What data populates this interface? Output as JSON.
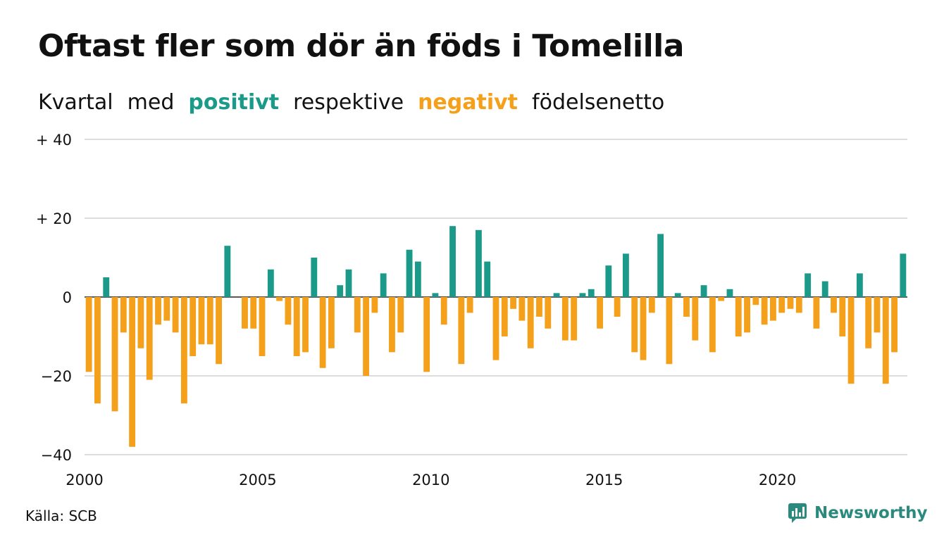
{
  "title": "Oftast fler som dör än föds i Tomelilla",
  "subtitle": {
    "w1": "Kvartal",
    "w2": "med",
    "positive": "positivt",
    "w3": "respektive",
    "negative": "negativt",
    "w4": "födelsenetto"
  },
  "source": "Källa: SCB",
  "brand": "Newsworthy",
  "colors": {
    "positive": "#1b9a8a",
    "negative": "#f5a01a",
    "grid": "#dddddd",
    "brand": "#2a8a7e"
  },
  "chart_data": {
    "type": "bar",
    "title": "Oftast fler som dör än föds i Tomelilla",
    "ylim": [
      -40,
      40
    ],
    "yticks": [
      {
        "value": 40,
        "label": "+ 40"
      },
      {
        "value": 20,
        "label": "+ 20"
      },
      {
        "value": 0,
        "label": "0"
      },
      {
        "value": -20,
        "label": "−20"
      },
      {
        "value": -40,
        "label": "−40"
      }
    ],
    "xticks": [
      "2000",
      "2005",
      "2010",
      "2015",
      "2020"
    ],
    "grid": true,
    "start": "2000-Q1",
    "values": [
      -19,
      -27,
      5,
      -29,
      -9,
      -38,
      -13,
      -21,
      -7,
      -6,
      -9,
      -27,
      -15,
      -12,
      -12,
      -17,
      13,
      0,
      -8,
      -8,
      -15,
      7,
      -1,
      -7,
      -15,
      -14,
      10,
      -18,
      -13,
      3,
      7,
      -9,
      -20,
      -4,
      6,
      -14,
      -9,
      12,
      9,
      -19,
      1,
      -7,
      18,
      -17,
      -4,
      17,
      9,
      -16,
      -10,
      -3,
      -6,
      -13,
      -5,
      -8,
      1,
      -11,
      -11,
      1,
      2,
      -8,
      8,
      -5,
      11,
      -14,
      -16,
      -4,
      16,
      -17,
      1,
      -5,
      -11,
      3,
      -14,
      -1,
      2,
      -10,
      -9,
      -2,
      -7,
      -6,
      -4,
      -3,
      -4,
      6,
      -8,
      4,
      -4,
      -10,
      -22,
      6,
      -13,
      -9,
      -22,
      -14,
      11
    ]
  }
}
